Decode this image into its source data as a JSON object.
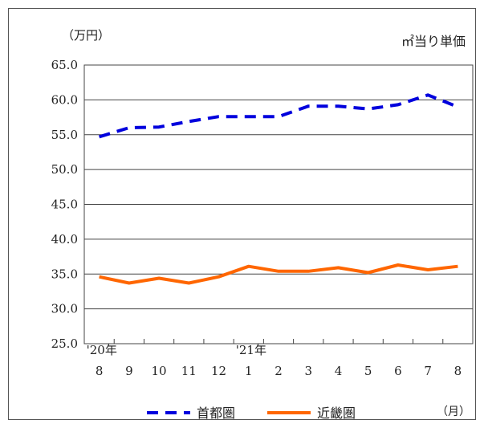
{
  "chart_data": {
    "type": "line",
    "unit_label": "（万円）",
    "subtitle": "㎡当り単価",
    "x_label": "（月）",
    "year_labels": [
      {
        "index": 0,
        "text": "'20年"
      },
      {
        "index": 5,
        "text": "'21年"
      }
    ],
    "categories": [
      "8",
      "9",
      "10",
      "11",
      "12",
      "1",
      "2",
      "3",
      "4",
      "5",
      "6",
      "7",
      "8"
    ],
    "ylim": [
      25.0,
      65.0
    ],
    "y_ticks": [
      "25.0",
      "30.0",
      "35.0",
      "40.0",
      "45.0",
      "50.0",
      "55.0",
      "60.0",
      "65.0"
    ],
    "grid": true,
    "legend_position": "bottom",
    "series": [
      {
        "name": "首都圏",
        "color": "#0000dd",
        "style": "dashed",
        "values": [
          54.7,
          56.0,
          56.1,
          56.9,
          57.6,
          57.6,
          57.6,
          59.1,
          59.1,
          58.7,
          59.3,
          60.7,
          59.0
        ]
      },
      {
        "name": "近畿圏",
        "color": "#ff6600",
        "style": "solid",
        "values": [
          34.6,
          33.7,
          34.4,
          33.7,
          34.6,
          36.1,
          35.4,
          35.4,
          35.9,
          35.2,
          36.3,
          35.6,
          36.1
        ]
      }
    ]
  }
}
